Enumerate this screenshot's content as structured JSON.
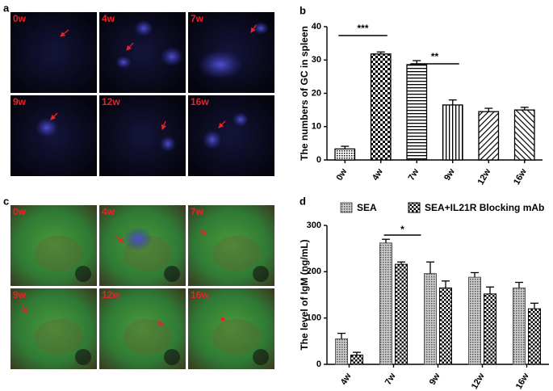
{
  "figure": {
    "panel_letters": [
      "a",
      "b",
      "c",
      "d"
    ],
    "panel_a_labels": [
      "0w",
      "4w",
      "7w",
      "9w",
      "12w",
      "16w"
    ],
    "panel_c_labels": [
      "0w",
      "4w",
      "7w",
      "9w",
      "12w",
      "16w"
    ]
  },
  "chart_data": [
    {
      "type": "bar",
      "ylabel": "The numbers of GC in spleen",
      "categories": [
        "0w",
        "4w",
        "7w",
        "9w",
        "12w",
        "16w"
      ],
      "values": [
        3.3,
        31.8,
        28.6,
        16.5,
        14.5,
        15.0
      ],
      "errors": [
        0.8,
        0.6,
        1.2,
        1.5,
        1.0,
        0.8
      ],
      "color": "#000000",
      "ylim": [
        0,
        40
      ],
      "yticks": [
        0,
        10,
        20,
        30,
        40
      ],
      "annotations": [
        "***",
        "**"
      ]
    },
    {
      "type": "grouped-bar",
      "ylabel": "The level of IgM (ng/mL)",
      "categories": [
        "4w",
        "7w",
        "9w",
        "12w",
        "16w"
      ],
      "series": [
        {
          "name": "SEA",
          "color": "#555555",
          "values": [
            55,
            262,
            196,
            188,
            165
          ],
          "errors": [
            12,
            8,
            25,
            10,
            12
          ]
        },
        {
          "name": "SEA+IL21R Blocking mAb",
          "color": "#000000",
          "values": [
            20,
            216,
            165,
            152,
            120
          ],
          "errors": [
            6,
            5,
            15,
            15,
            12
          ]
        }
      ],
      "ylim": [
        0,
        300
      ],
      "yticks": [
        0,
        100,
        200,
        300
      ],
      "annotations": [
        "*"
      ]
    }
  ]
}
